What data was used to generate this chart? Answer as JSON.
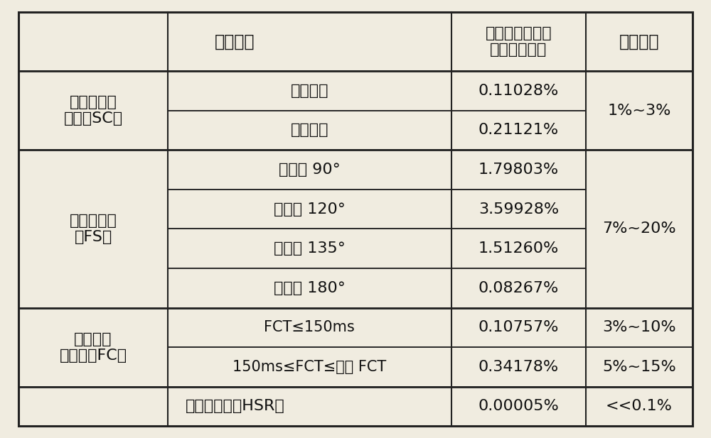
{
  "fig_width": 10.0,
  "fig_height": 6.17,
  "bg_color": "#f0ece0",
  "line_color": "#222222",
  "text_color": "#111111",
  "header": {
    "col01": "扰动类型",
    "col2": "各考核截面最大\n疲劳寿命损耗",
    "col3": "允许阈値"
  },
  "sections": [
    {
      "row_label": "发电机出口\n短路（SC）",
      "sub_rows": [
        {
          "disturbance": "两相短路",
          "fatigue": "0.11028%"
        },
        {
          "disturbance": "三相短路",
          "fatigue": "0.21121%"
        }
      ],
      "threshold": "1%~3%",
      "threshold_merged": true
    },
    {
      "row_label": "误同期合闸\n（FS）",
      "sub_rows": [
        {
          "disturbance": "相角差 90°",
          "fatigue": "1.79803%"
        },
        {
          "disturbance": "相角差 120°",
          "fatigue": "3.59928%"
        },
        {
          "disturbance": "相角差 135°",
          "fatigue": "1.51260%"
        },
        {
          "disturbance": "相角差 180°",
          "fatigue": "0.08267%"
        }
      ],
      "threshold": "7%~20%",
      "threshold_merged": true
    },
    {
      "row_label": "近处短路\n及清除（FC）",
      "sub_rows": [
        {
          "disturbance": "FCT≤150ms",
          "fatigue": "0.10757%",
          "threshold": "3%~10%"
        },
        {
          "disturbance": "150ms≤FCT≤临界 FCT",
          "fatigue": "0.34178%",
          "threshold": "5%~15%"
        }
      ],
      "threshold_merged": false
    },
    {
      "row_label": "单相重合闸（HSR）",
      "sub_rows": [
        {
          "disturbance": "",
          "fatigue": "0.00005%",
          "threshold": "<<0.1%"
        }
      ],
      "merged_label": true,
      "threshold_merged": false
    }
  ],
  "font_size_header": 17,
  "font_size_body": 16,
  "font_size_label": 16
}
